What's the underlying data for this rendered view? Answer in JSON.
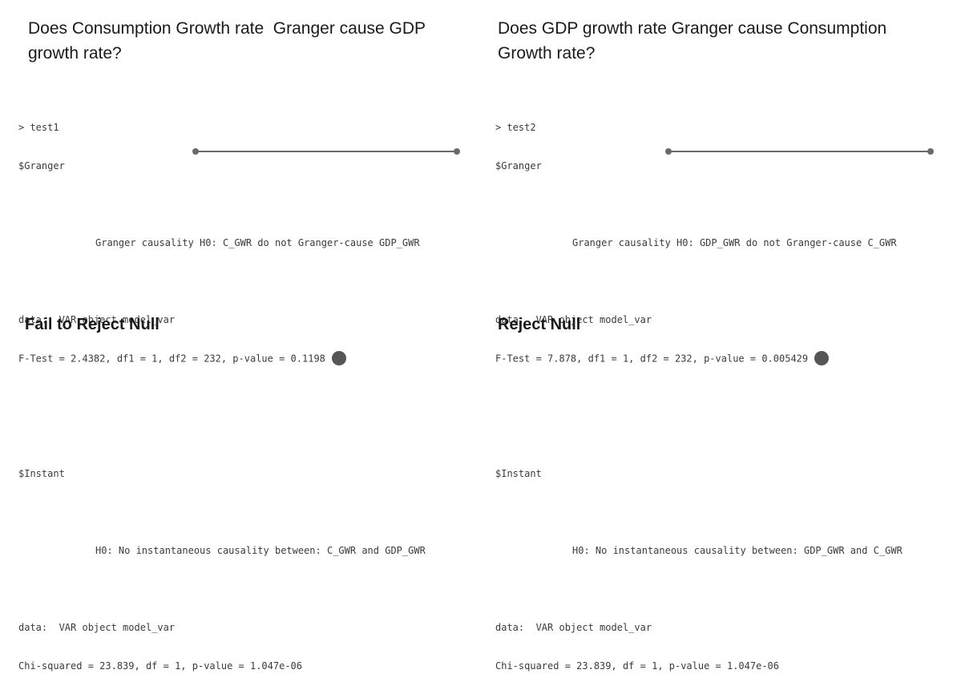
{
  "left": {
    "question_line1": "Does Consumption Growth rate  Granger cause GDP",
    "question_line2": "growth rate?",
    "console": {
      "prompt": "> test1",
      "granger_header": "$Granger",
      "granger_h0": "Granger causality H0: C_GWR do not Granger-cause GDP_GWR",
      "granger_data": "data:  VAR object model_var",
      "granger_test": "F-Test = 2.4382, df1 = 1, df2 = 232, p-value = 0.1198",
      "instant_header": "$Instant",
      "instant_h0": "H0: No instantaneous causality between: C_GWR and GDP_GWR",
      "instant_data": "data:  VAR object model_var",
      "instant_test": "Chi-squared = 23.839, df = 1, p-value = 1.047e-06"
    },
    "conclusion": "Fail to Reject Null"
  },
  "right": {
    "question_line1": "Does GDP growth rate Granger cause Consumption",
    "question_line2": "Growth rate?",
    "console": {
      "prompt": "> test2",
      "granger_header": "$Granger",
      "granger_h0": "Granger causality H0: GDP_GWR do not Granger-cause C_GWR",
      "granger_data": "data:  VAR object model_var",
      "granger_test": "F-Test = 7.878, df1 = 1, df2 = 232, p-value = 0.005429",
      "instant_header": "$Instant",
      "instant_h0": "H0: No instantaneous causality between: GDP_GWR and C_GWR",
      "instant_data": "data:  VAR object model_var",
      "instant_test": "Chi-squared = 23.839, df = 1, p-value = 1.047e-06"
    },
    "conclusion": "Reject Null"
  },
  "colors": {
    "text": "#1a1a1a",
    "console_text": "#3b3b3b",
    "marker": "#555555",
    "rule": "#6a6a6a"
  }
}
